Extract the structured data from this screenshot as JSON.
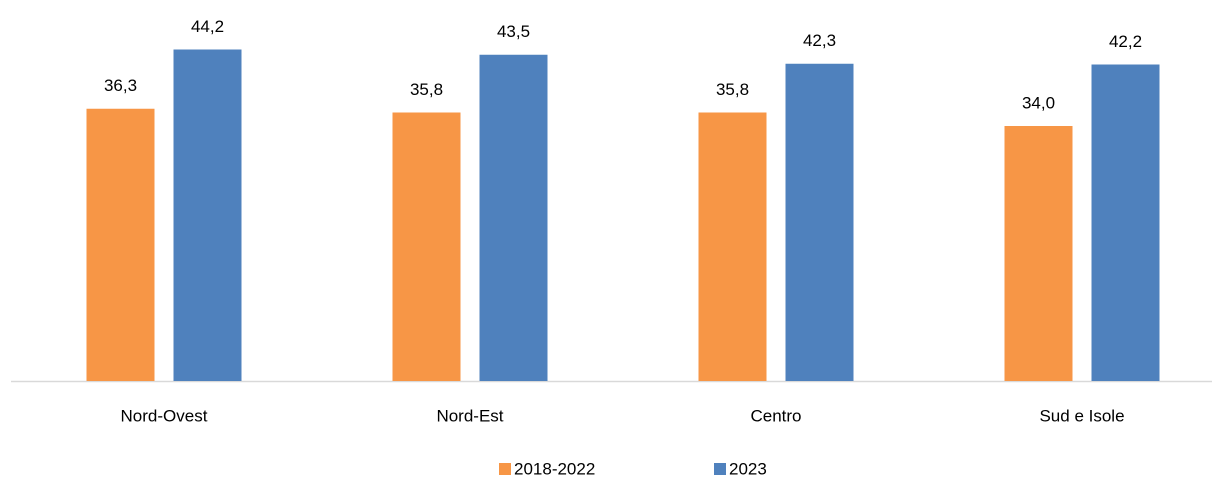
{
  "chart_data": {
    "type": "bar",
    "categories": [
      "Nord-Ovest",
      "Nord-Est",
      "Centro",
      "Sud e Isole"
    ],
    "series": [
      {
        "name": "2018-2022",
        "color": "#f79646",
        "values": [
          36.3,
          35.8,
          35.8,
          34.0
        ],
        "value_labels": [
          "36,3",
          "35,8",
          "35,8",
          "34,0"
        ]
      },
      {
        "name": "2023",
        "color": "#4f81bd",
        "values": [
          44.2,
          43.5,
          42.3,
          42.2
        ],
        "value_labels": [
          "44,2",
          "43,5",
          "42,3",
          "42,2"
        ]
      }
    ],
    "ylim": [
      0,
      50
    ],
    "legend": "bottom"
  }
}
